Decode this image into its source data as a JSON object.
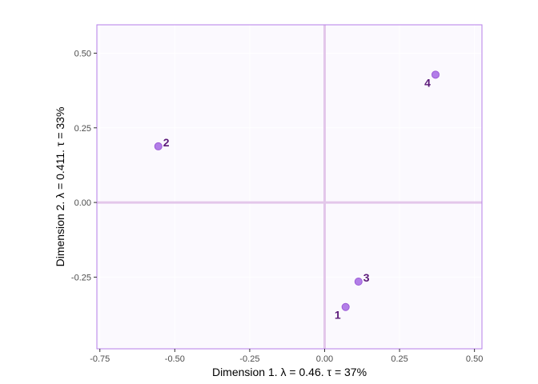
{
  "chart_data": {
    "type": "scatter",
    "title": "",
    "xlabel": "Dimension 1.   λ = 0.46.  τ = 37%",
    "ylabel": "Dimension 2.   λ = 0.411.  τ = 33%",
    "xlim": [
      -0.76,
      0.525
    ],
    "ylim": [
      -0.49,
      0.595
    ],
    "xticks": [
      -0.75,
      -0.5,
      -0.25,
      0.0,
      0.25,
      0.5
    ],
    "xtick_labels": [
      "-0.75",
      "-0.50",
      "-0.25",
      "0.00",
      "0.25",
      "0.50"
    ],
    "yticks": [
      -0.25,
      0.0,
      0.25,
      0.5
    ],
    "ytick_labels": [
      "-0.25",
      "0.00",
      "0.25",
      "0.50"
    ],
    "grid": true,
    "points": [
      {
        "label": "1",
        "x": 0.07,
        "y": -0.35,
        "label_side": "below-left"
      },
      {
        "label": "2",
        "x": -0.555,
        "y": 0.188,
        "label_side": "right"
      },
      {
        "label": "3",
        "x": 0.113,
        "y": -0.265,
        "label_side": "right"
      },
      {
        "label": "4",
        "x": 0.37,
        "y": 0.428,
        "label_side": "below-left"
      }
    ],
    "colors": {
      "point_fill": "#b27ee8",
      "point_stroke": "#9b59d6",
      "label_color": "#5c1a7a",
      "panel_bg": "#fbf9fe",
      "panel_border": "#b57ee8",
      "reference_lines": "#e3c7ea",
      "grid": "#ffffff"
    }
  }
}
